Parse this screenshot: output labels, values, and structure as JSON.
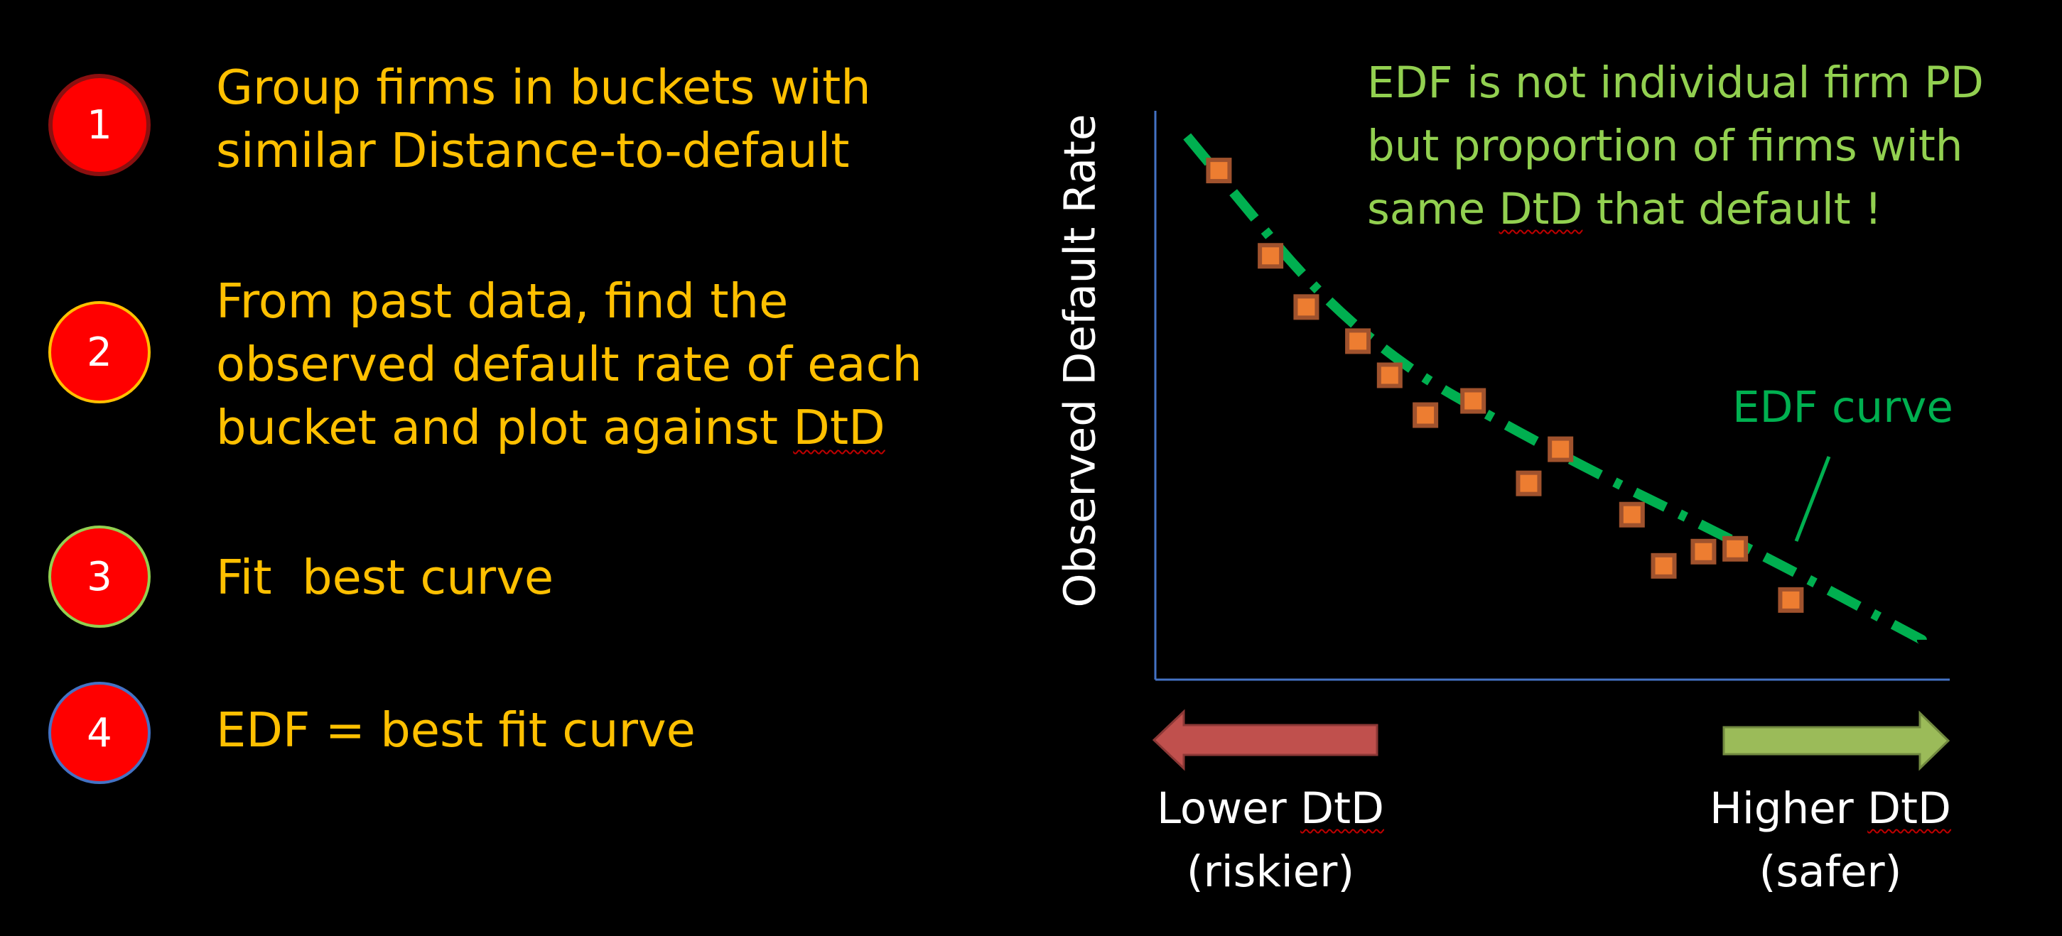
{
  "steps": [
    {
      "number": "1",
      "lines": [
        "Group firms in buckets with",
        "similar Distance-to-default"
      ]
    },
    {
      "number": "2",
      "lines": [
        "From past data, find the",
        "observed default rate of each",
        "bucket and plot against ",
        "DtD"
      ]
    },
    {
      "number": "3",
      "lines": [
        "Fit  best curve"
      ]
    },
    {
      "number": "4",
      "lines": [
        "EDF = best fit curve"
      ]
    }
  ],
  "note": {
    "line1": "EDF is not individual firm PD",
    "line2": "but proportion of firms with",
    "line3_pre": "same ",
    "line3_dtd": "DtD",
    "line3_post": " that default !"
  },
  "curve_label": "EDF curve",
  "arrows": {
    "lower": {
      "line1_pre": "Lower ",
      "line1_dtd": "DtD",
      "line2": "(riskier)"
    },
    "higher": {
      "line1_pre": "Higher ",
      "line1_dtd": "DtD",
      "line2": "(safer)"
    }
  },
  "colors": {
    "step_text": "#FFC000",
    "note_text": "#92D050",
    "curve": "#00B050",
    "points": "#ED7D31",
    "axis": "#4472C4",
    "arrow_left": "#C0504D",
    "arrow_right": "#9BBB59"
  },
  "chart_data": {
    "type": "scatter",
    "ylabel": "Observed Default Rate",
    "xlabel": "",
    "series": [
      {
        "values": [
          [
            0.08,
            0.895
          ],
          [
            0.145,
            0.745
          ],
          [
            0.19,
            0.655
          ],
          [
            0.255,
            0.595
          ],
          [
            0.295,
            0.535
          ],
          [
            0.34,
            0.465
          ],
          [
            0.4,
            0.49
          ],
          [
            0.47,
            0.345
          ],
          [
            0.51,
            0.405
          ],
          [
            0.6,
            0.29
          ],
          [
            0.64,
            0.2
          ],
          [
            0.69,
            0.225
          ],
          [
            0.73,
            0.23
          ],
          [
            0.8,
            0.14
          ]
        ]
      },
      {
        "values": [
          [
            0.04,
            0.955
          ],
          [
            0.25,
            0.6
          ],
          [
            0.5,
            0.4
          ],
          [
            0.75,
            0.23
          ],
          [
            0.965,
            0.07
          ]
        ]
      }
    ]
  }
}
